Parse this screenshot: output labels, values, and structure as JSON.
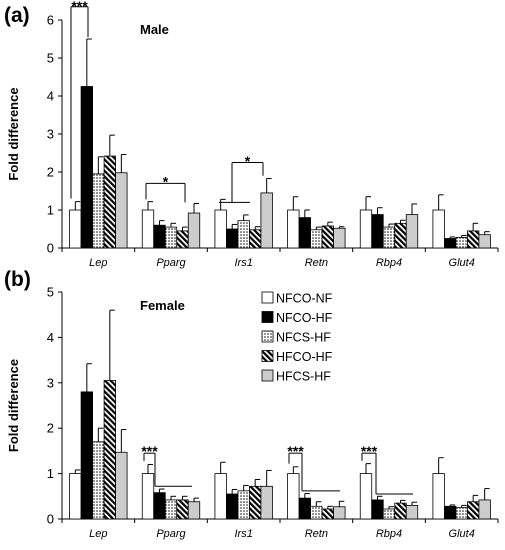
{
  "figure": {
    "panels": [
      {
        "label": "(a)",
        "title": "Male"
      },
      {
        "label": "(b)",
        "title": "Female"
      }
    ]
  },
  "chart_data": [
    {
      "type": "bar",
      "panel": "(a)",
      "title": "Male",
      "xlabel": "",
      "ylabel": "Fold difference",
      "ylim": [
        0,
        6
      ],
      "yticks": [
        "0",
        "1",
        "2",
        "3",
        "4",
        "5",
        "6"
      ],
      "categories": [
        "Lep",
        "Pparg",
        "Irs1",
        "Retn",
        "Rbp4",
        "Glut4"
      ],
      "series": [
        {
          "name": "NFCO-NF",
          "pattern": "white",
          "values": [
            1.0,
            1.0,
            1.0,
            1.0,
            1.0,
            1.0
          ],
          "errors": [
            0.22,
            0.22,
            0.28,
            0.35,
            0.35,
            0.4
          ]
        },
        {
          "name": "NFCO-HF",
          "pattern": "black",
          "values": [
            4.25,
            0.6,
            0.5,
            0.8,
            0.88,
            0.25
          ],
          "errors": [
            1.25,
            0.12,
            0.12,
            0.2,
            0.18,
            0.04
          ]
        },
        {
          "name": "NFCS-HF",
          "pattern": "dots",
          "values": [
            1.95,
            0.55,
            0.72,
            0.48,
            0.55,
            0.28
          ],
          "errors": [
            0.45,
            0.1,
            0.15,
            0.07,
            0.08,
            0.05
          ]
        },
        {
          "name": "HFCO-HF",
          "pattern": "diagonal",
          "values": [
            2.42,
            0.45,
            0.48,
            0.58,
            0.65,
            0.45
          ],
          "errors": [
            0.55,
            0.1,
            0.08,
            0.1,
            0.08,
            0.2
          ]
        },
        {
          "name": "HFCS-HF",
          "pattern": "gray",
          "values": [
            1.98,
            0.92,
            1.45,
            0.52,
            0.88,
            0.35
          ],
          "errors": [
            0.48,
            0.25,
            0.38,
            0.04,
            0.28,
            0.08
          ]
        }
      ],
      "annotations": [
        {
          "text": "***",
          "category": "Lep"
        },
        {
          "text": "*",
          "category": "Pparg"
        },
        {
          "text": "*",
          "category": "Irs1"
        }
      ]
    },
    {
      "type": "bar",
      "panel": "(b)",
      "title": "Female",
      "xlabel": "",
      "ylabel": "Fold difference",
      "ylim": [
        0,
        5
      ],
      "yticks": [
        "0",
        "1",
        "2",
        "3",
        "4",
        "5"
      ],
      "categories": [
        "Lep",
        "Pparg",
        "Irs1",
        "Retn",
        "Rbp4",
        "Glut4"
      ],
      "legend_position": "top-center",
      "series": [
        {
          "name": "NFCO-NF",
          "pattern": "white",
          "values": [
            1.0,
            1.0,
            1.0,
            1.0,
            1.0,
            1.0
          ],
          "errors": [
            0.08,
            0.2,
            0.25,
            0.15,
            0.22,
            0.35
          ]
        },
        {
          "name": "NFCO-HF",
          "pattern": "black",
          "values": [
            2.8,
            0.58,
            0.55,
            0.46,
            0.42,
            0.28
          ],
          "errors": [
            0.62,
            0.08,
            0.1,
            0.1,
            0.08,
            0.03
          ]
        },
        {
          "name": "NFCS-HF",
          "pattern": "dots",
          "values": [
            1.7,
            0.42,
            0.62,
            0.28,
            0.22,
            0.25
          ],
          "errors": [
            0.3,
            0.08,
            0.12,
            0.1,
            0.05,
            0.05
          ]
        },
        {
          "name": "HFCO-HF",
          "pattern": "diagonal",
          "values": [
            3.05,
            0.42,
            0.72,
            0.22,
            0.35,
            0.38
          ],
          "errors": [
            1.55,
            0.08,
            0.15,
            0.06,
            0.06,
            0.14
          ]
        },
        {
          "name": "HFCS-HF",
          "pattern": "gray",
          "values": [
            1.47,
            0.38,
            0.72,
            0.27,
            0.3,
            0.42
          ],
          "errors": [
            0.5,
            0.08,
            0.35,
            0.12,
            0.07,
            0.25
          ]
        }
      ],
      "annotations": [
        {
          "text": "***",
          "category": "Pparg"
        },
        {
          "text": "***",
          "category": "Retn"
        },
        {
          "text": "***",
          "category": "Rbp4"
        }
      ]
    }
  ]
}
